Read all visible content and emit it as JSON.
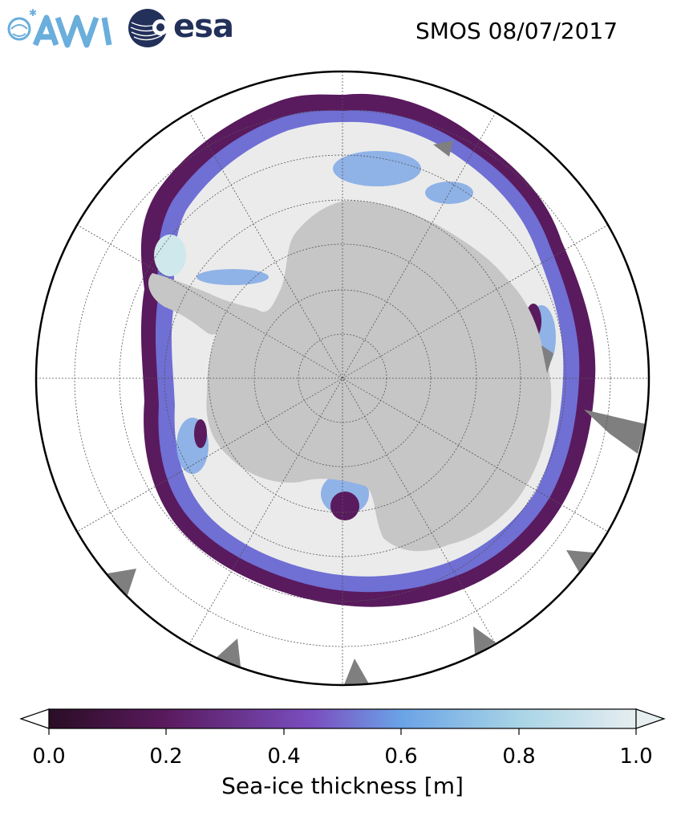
{
  "title": "SMOS 08/07/2017",
  "logos": {
    "awi_text": "AWI",
    "esa_text": "esa"
  },
  "colors": {
    "ocean": "#ffffff",
    "land": "#c8c8c8",
    "thick_ice": "#ebebeb",
    "mask_gray": "#7f7f7f",
    "awi_blue": "#6aaedc",
    "esa_navy": "#22305a"
  },
  "map": {
    "projection": "South polar stereographic",
    "graticule": "dotted"
  },
  "colorbar": {
    "label": "Sea-ice thickness [m]",
    "ticks": [
      "0.0",
      "0.2",
      "0.4",
      "0.6",
      "0.8",
      "1.0"
    ],
    "range": [
      0.0,
      1.0
    ],
    "extend": "both",
    "colormap_stops": [
      "#2a0d25",
      "#5a1a5e",
      "#7a4fc1",
      "#6aa3e6",
      "#a8d4e6",
      "#e6eef0"
    ]
  }
}
